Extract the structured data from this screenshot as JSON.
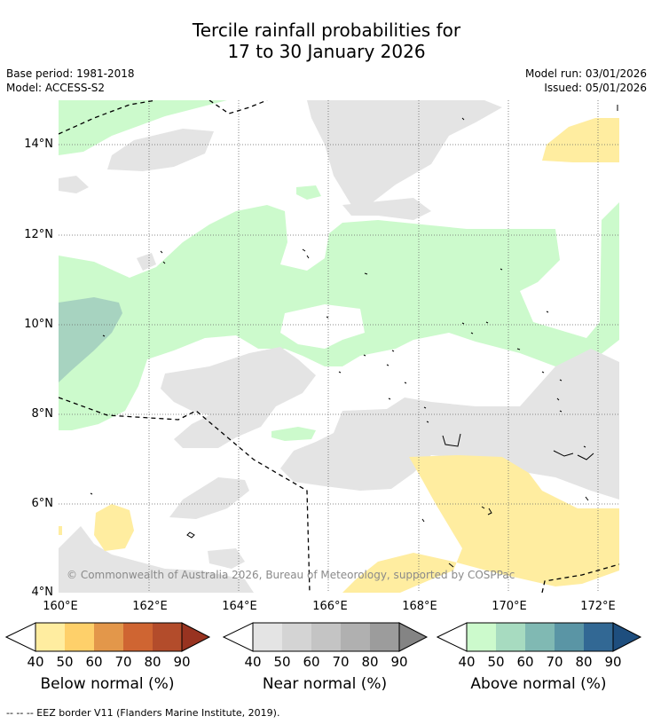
{
  "title": {
    "line1": "Tercile rainfall probabilities for",
    "line2": "17 to 30 January 2026"
  },
  "meta": {
    "base_period": "Base period: 1981-2018",
    "model": "Model: ACCESS-S2",
    "model_run": "Model run: 03/01/2026",
    "issued": "Issued: 05/01/2026"
  },
  "axes": {
    "lat_labels": [
      "14°N",
      "12°N",
      "10°N",
      "8°N",
      "6°N",
      "4°N"
    ],
    "lon_labels": [
      "160°E",
      "162°E",
      "164°E",
      "166°E",
      "168°E",
      "170°E",
      "172°E"
    ]
  },
  "copyright": "© Commonwealth of Australia 2026, Bureau of Meteorology, supported by COSPPac",
  "legends": {
    "below": {
      "title": "Below normal (%)",
      "ticks": [
        "40",
        "50",
        "60",
        "70",
        "80",
        "90"
      ],
      "colors": [
        "#ffeda0",
        "#fed06a",
        "#e3974a",
        "#cf6532",
        "#b34c2b",
        "#983320"
      ]
    },
    "near": {
      "title": "Near normal (%)",
      "ticks": [
        "40",
        "50",
        "60",
        "70",
        "80",
        "90"
      ],
      "colors": [
        "#e4e4e4",
        "#d4d4d4",
        "#c4c4c4",
        "#b0b0b0",
        "#9c9c9c",
        "#848484"
      ]
    },
    "above": {
      "title": "Above normal (%)",
      "ticks": [
        "40",
        "50",
        "60",
        "70",
        "80",
        "90"
      ],
      "colors": [
        "#ccfacc",
        "#a7dbc0",
        "#80b9b3",
        "#5a95a5",
        "#326894",
        "#1e4e7e"
      ]
    }
  },
  "footnote": "--  --  -- EEZ border V11 (Flanders Marine Institute, 2019)."
}
